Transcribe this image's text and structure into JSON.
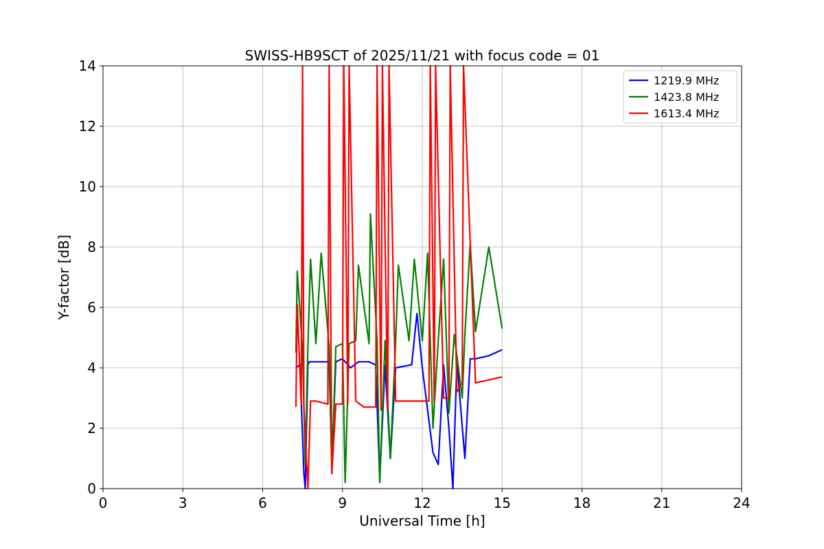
{
  "chart_data": {
    "type": "line",
    "title": "SWISS-HB9SCT of 2025/11/21 with focus code = 01",
    "xlabel": "Universal Time [h]",
    "ylabel": "Y-factor [dB]",
    "xlim": [
      0,
      24
    ],
    "ylim": [
      0,
      14
    ],
    "xticks": [
      0,
      3,
      6,
      9,
      12,
      15,
      18,
      21,
      24
    ],
    "xtick_labels": [
      "0",
      "3",
      "6",
      "9",
      "12",
      "15",
      "18",
      "21",
      "24"
    ],
    "yticks": [
      0,
      2,
      4,
      6,
      8,
      10,
      12,
      14
    ],
    "ytick_labels": [
      "0",
      "2",
      "4",
      "6",
      "8",
      "10",
      "12",
      "14"
    ],
    "grid": true,
    "legend_position": "top-right",
    "series": [
      {
        "name": "1219.9 MHz",
        "color": "#0000ff",
        "x": [
          7.25,
          7.4,
          7.55,
          7.6,
          7.7,
          7.75,
          8.0,
          8.5,
          8.6,
          8.75,
          9.0,
          9.3,
          9.6,
          10.0,
          10.25,
          10.4,
          10.6,
          10.8,
          11.0,
          11.6,
          11.8,
          12.0,
          12.4,
          12.6,
          12.8,
          13.0,
          13.15,
          13.3,
          13.6,
          13.8,
          14.0,
          14.5,
          15.0
        ],
        "values": [
          4.0,
          4.1,
          0.5,
          0.0,
          4.1,
          4.2,
          4.2,
          4.2,
          0.8,
          4.2,
          4.3,
          4.0,
          4.2,
          4.2,
          4.1,
          0.3,
          4.1,
          1.0,
          4.0,
          4.1,
          5.8,
          4.0,
          1.2,
          0.8,
          4.1,
          2.0,
          0.0,
          4.2,
          1.0,
          4.3,
          4.3,
          4.4,
          4.6
        ]
      },
      {
        "name": "1423.8 MHz",
        "color": "#008000",
        "x": [
          7.25,
          7.3,
          7.5,
          7.6,
          7.7,
          7.8,
          8.0,
          8.2,
          8.5,
          8.6,
          8.75,
          9.0,
          9.1,
          9.25,
          9.5,
          9.6,
          10.0,
          10.05,
          10.3,
          10.4,
          10.6,
          10.8,
          11.0,
          11.1,
          11.5,
          11.7,
          12.0,
          12.2,
          12.4,
          12.6,
          12.8,
          13.0,
          13.2,
          13.5,
          13.6,
          13.8,
          14.0,
          14.5,
          15.0
        ],
        "values": [
          4.5,
          7.2,
          4.6,
          0.8,
          4.7,
          7.6,
          4.8,
          7.8,
          4.7,
          0.5,
          4.7,
          4.8,
          0.2,
          4.8,
          4.9,
          7.4,
          4.8,
          9.1,
          4.9,
          0.2,
          4.9,
          1.0,
          4.9,
          7.4,
          4.9,
          7.6,
          4.9,
          7.8,
          2.0,
          4.9,
          7.6,
          2.5,
          5.1,
          3.0,
          5.1,
          8.1,
          5.2,
          8.0,
          5.3
        ]
      },
      {
        "name": "1613.4 MHz",
        "color": "#ff0000",
        "x": [
          7.25,
          7.3,
          7.45,
          7.5,
          7.55,
          7.7,
          7.8,
          8.0,
          8.45,
          8.5,
          8.6,
          8.75,
          9.0,
          9.05,
          9.2,
          9.25,
          9.5,
          9.8,
          10.25,
          10.3,
          10.45,
          10.5,
          10.7,
          10.75,
          11.0,
          12.0,
          12.25,
          12.3,
          12.45,
          12.5,
          12.8,
          13.0,
          13.05,
          13.3,
          13.5,
          13.55,
          14.0,
          14.5,
          15.0
        ],
        "values": [
          2.7,
          6.1,
          2.8,
          14.0,
          2.7,
          0.0,
          2.9,
          2.9,
          2.8,
          14.0,
          0.5,
          2.8,
          2.8,
          14.0,
          2.8,
          14.0,
          2.9,
          2.7,
          2.7,
          14.0,
          2.6,
          14.0,
          2.6,
          14.0,
          2.9,
          2.9,
          2.9,
          14.0,
          2.9,
          14.0,
          3.0,
          3.0,
          14.0,
          3.2,
          3.5,
          14.0,
          3.5,
          3.6,
          3.7
        ]
      }
    ]
  }
}
